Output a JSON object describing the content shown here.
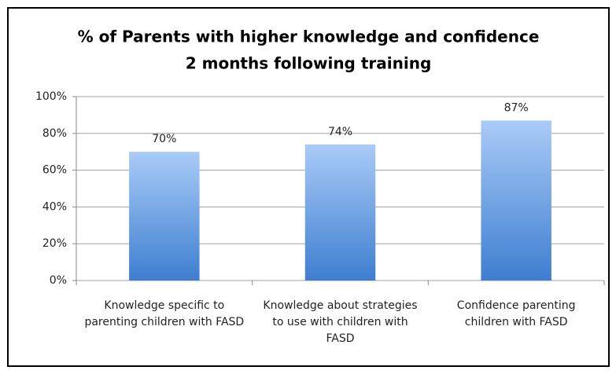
{
  "chart_data": {
    "type": "bar",
    "title": [
      "% of Parents with higher knowledge and confidence",
      "2 months following training"
    ],
    "categories": [
      "Knowledge specific to parenting children with FASD",
      "Knowledge about strategies to use with children with FASD",
      "Confidence parenting children with FASD"
    ],
    "values": [
      70,
      74,
      87
    ],
    "value_labels": [
      "70%",
      "74%",
      "87%"
    ],
    "color": [
      "#a9cbf7",
      "#3e7ed0"
    ],
    "ylim": [
      0,
      100
    ],
    "yticks": [
      {
        "value": 0,
        "label": "0%"
      },
      {
        "value": 20,
        "label": "20%"
      },
      {
        "value": 40,
        "label": "40%"
      },
      {
        "value": 60,
        "label": "60%"
      },
      {
        "value": 80,
        "label": "80%"
      },
      {
        "value": 100,
        "label": "100%"
      }
    ],
    "grid": true
  }
}
